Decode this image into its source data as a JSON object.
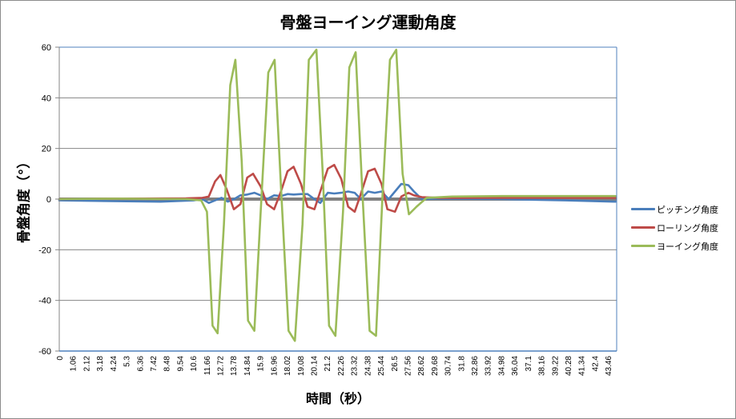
{
  "chart_data": {
    "type": "line",
    "title": "骨盤ヨーイング運動角度",
    "xlabel": "時間（秒）",
    "ylabel": "骨盤角度（°）",
    "ylim": [
      -60,
      60
    ],
    "yticks": [
      60,
      40,
      20,
      0,
      -20,
      -40,
      -60
    ],
    "grid": true,
    "legend_position": "right",
    "xticks": [
      "0",
      "1.06",
      "2.12",
      "3.18",
      "4.24",
      "5.3",
      "6.36",
      "7.42",
      "8.48",
      "9.54",
      "10.6",
      "11.66",
      "12.72",
      "13.78",
      "14.84",
      "15.9",
      "16.96",
      "18.02",
      "19.08",
      "20.14",
      "21.2",
      "22.26",
      "23.32",
      "24.38",
      "25.44",
      "26.5",
      "27.56",
      "28.62",
      "29.68",
      "30.74",
      "31.8",
      "32.86",
      "33.92",
      "34.98",
      "36.04",
      "37.1",
      "38.16",
      "39.22",
      "40.28",
      "41.34",
      "42.4",
      "43.46"
    ],
    "series": [
      {
        "name": "ピッチング角度",
        "color": "#4a7ebb",
        "x": [
          0,
          4,
          8,
          10.6,
          11.3,
          11.8,
          12.3,
          12.8,
          13.3,
          13.8,
          14.3,
          14.84,
          15.4,
          15.9,
          16.4,
          16.96,
          17.5,
          18.02,
          18.5,
          19.08,
          19.6,
          20.14,
          20.6,
          21.2,
          21.7,
          22.26,
          22.8,
          23.32,
          23.8,
          24.38,
          24.9,
          25.44,
          26,
          26.5,
          27.0,
          27.56,
          28.0,
          28.62,
          30,
          35,
          40,
          43.9
        ],
        "y": [
          -0.5,
          -0.8,
          -1,
          -0.5,
          0,
          -1.5,
          -0.5,
          0.5,
          -1,
          0,
          1.5,
          1.8,
          2.5,
          1.5,
          0,
          1.5,
          1.2,
          2,
          1.8,
          2,
          2,
          0,
          -1.5,
          2.5,
          2.2,
          2.5,
          3,
          2.5,
          0,
          3,
          2.5,
          3,
          0,
          3,
          6,
          5.5,
          3,
          0,
          0.2,
          0,
          -0.5,
          -1
        ]
      },
      {
        "name": "ローリング角度",
        "color": "#be4b48",
        "x": [
          0,
          5,
          10,
          11.3,
          11.8,
          12.3,
          12.72,
          13.2,
          13.78,
          14.3,
          14.84,
          15.3,
          15.9,
          16.4,
          16.96,
          17.5,
          18.02,
          18.5,
          19.08,
          19.6,
          20.14,
          20.6,
          21.2,
          21.7,
          22.26,
          22.8,
          23.32,
          23.8,
          24.38,
          24.9,
          25.44,
          25.9,
          26.5,
          27.0,
          27.56,
          28.0,
          28.62,
          30,
          35,
          40,
          43.9
        ],
        "y": [
          0,
          0.2,
          0.3,
          0.5,
          1,
          7,
          9.5,
          4,
          -4,
          -2,
          8.5,
          10,
          5,
          -2,
          -4,
          3,
          11,
          12.8,
          6,
          -3,
          -4,
          3,
          12,
          13.5,
          8,
          -3,
          -5,
          2,
          11,
          12,
          6,
          -4,
          -5,
          1,
          2.5,
          1.5,
          0.8,
          0.5,
          0.5,
          0.5,
          0.5
        ]
      },
      {
        "name": "ヨーイング角度",
        "color": "#9bbb59",
        "x": [
          0,
          5,
          10,
          11.2,
          11.66,
          12.1,
          12.5,
          13.0,
          13.5,
          13.9,
          14.4,
          14.9,
          15.4,
          15.9,
          16.5,
          17.0,
          17.5,
          18.1,
          18.6,
          19.2,
          19.7,
          20.3,
          20.8,
          21.3,
          21.8,
          22.4,
          22.9,
          23.4,
          23.9,
          24.5,
          25.0,
          25.5,
          26.1,
          26.6,
          27.1,
          27.6,
          28.2,
          29.0,
          31,
          35,
          40,
          43.9
        ],
        "y": [
          0,
          0.2,
          0,
          -0.5,
          -5,
          -50,
          -53,
          -10,
          45,
          55,
          15,
          -48,
          -52,
          -5,
          50,
          55,
          5,
          -52,
          -56,
          -10,
          55,
          59,
          10,
          -50,
          -54,
          -5,
          52,
          58,
          5,
          -52,
          -54,
          0,
          55,
          59,
          10,
          -6,
          -3,
          0.5,
          1,
          1.2,
          1.2,
          1.2
        ]
      }
    ]
  },
  "legend": [
    {
      "label": "ピッチング角度",
      "color": "#4a7ebb"
    },
    {
      "label": "ローリング角度",
      "color": "#be4b48"
    },
    {
      "label": "ヨーイング角度",
      "color": "#9bbb59"
    }
  ]
}
